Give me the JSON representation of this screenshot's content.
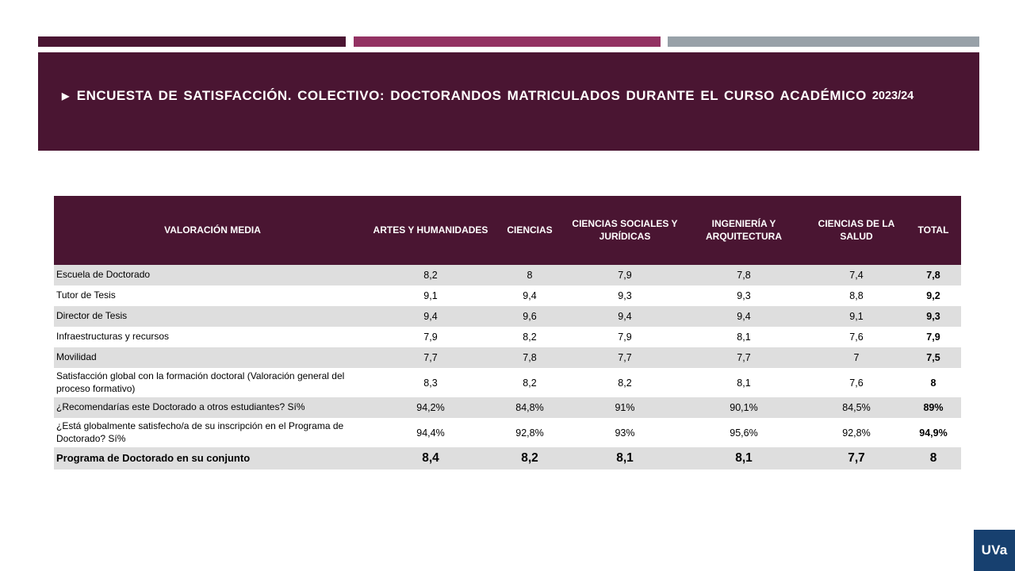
{
  "colors": {
    "maroon": "#4A1532",
    "magenta": "#933263",
    "steel": "#98A1A8",
    "rowgray": "#DEDEDE",
    "logoblue": "#17406F"
  },
  "banner": {
    "arrow_icon": "▶",
    "title": "ENCUESTA DE SATISFACCIÓN. COLECTIVO: DOCTORANDOS MATRICULADOS DURANTE EL CURSO ACADÉMICO",
    "year": "2023/24"
  },
  "table": {
    "columns": [
      "VALORACIÓN MEDIA",
      "ARTES Y HUMANIDADES",
      "CIENCIAS",
      "CIENCIAS SOCIALES Y JURÍDICAS",
      "INGENIERÍA Y ARQUITECTURA",
      "CIENCIAS DE LA SALUD",
      "TOTAL"
    ],
    "rows": [
      {
        "label": "Escuela de Doctorado",
        "values": [
          "8,2",
          "8",
          "7,9",
          "7,8",
          "7,4",
          "7,8"
        ]
      },
      {
        "label": "Tutor de Tesis",
        "values": [
          "9,1",
          "9,4",
          "9,3",
          "9,3",
          "8,8",
          "9,2"
        ]
      },
      {
        "label": "Director de Tesis",
        "values": [
          "9,4",
          "9,6",
          "9,4",
          "9,4",
          "9,1",
          "9,3"
        ]
      },
      {
        "label": "Infraestructuras y recursos",
        "values": [
          "7,9",
          "8,2",
          "7,9",
          "8,1",
          "7,6",
          "7,9"
        ]
      },
      {
        "label": "Movilidad",
        "values": [
          "7,7",
          "7,8",
          "7,7",
          "7,7",
          "7",
          "7,5"
        ]
      },
      {
        "label": "Satisfacción global con la formación doctoral (Valoración general del proceso formativo)",
        "values": [
          "8,3",
          "8,2",
          "8,2",
          "8,1",
          "7,6",
          "8"
        ]
      },
      {
        "label": "¿Recomendarías este Doctorado a otros estudiantes? Sí%",
        "values": [
          "94,2%",
          "84,8%",
          "91%",
          "90,1%",
          "84,5%",
          "89%"
        ]
      },
      {
        "label": "¿Está globalmente satisfecho/a de su inscripción en el Programa de Doctorado? Sí%",
        "values": [
          "94,4%",
          "92,8%",
          "93%",
          "95,6%",
          "92,8%",
          "94,9%"
        ]
      },
      {
        "label": "Programa de Doctorado en su conjunto",
        "values": [
          "8,4",
          "8,2",
          "8,1",
          "8,1",
          "7,7",
          "8"
        ],
        "summary": true
      }
    ]
  },
  "logo": {
    "text": "UVa"
  }
}
